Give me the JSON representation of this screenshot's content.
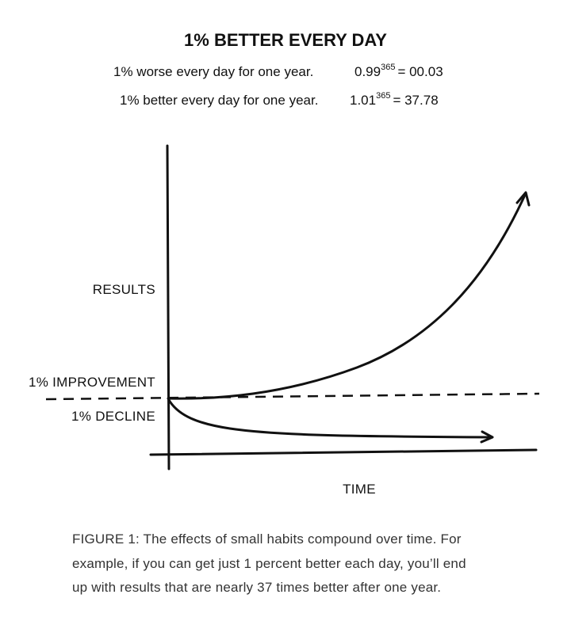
{
  "header": {
    "title": "1% BETTER EVERY DAY"
  },
  "equations": [
    {
      "text": "1% worse every day for one year.",
      "base": "0.99",
      "exponent": "365",
      "result": "= 00.03"
    },
    {
      "text": "1% better every day for one year.",
      "base": "1.01",
      "exponent": "365",
      "result": "= 37.78"
    }
  ],
  "diagram": {
    "y_label": "RESULTS",
    "improvement_label": "1% IMPROVEMENT",
    "decline_label": "1% DECLINE",
    "x_label": "TIME"
  },
  "caption": [
    "FIGURE 1: The effects of small habits compound over time. For",
    "example, if you can get just 1 percent better each day, you’ll end",
    "up with results that are nearly 37 times better after one year."
  ]
}
